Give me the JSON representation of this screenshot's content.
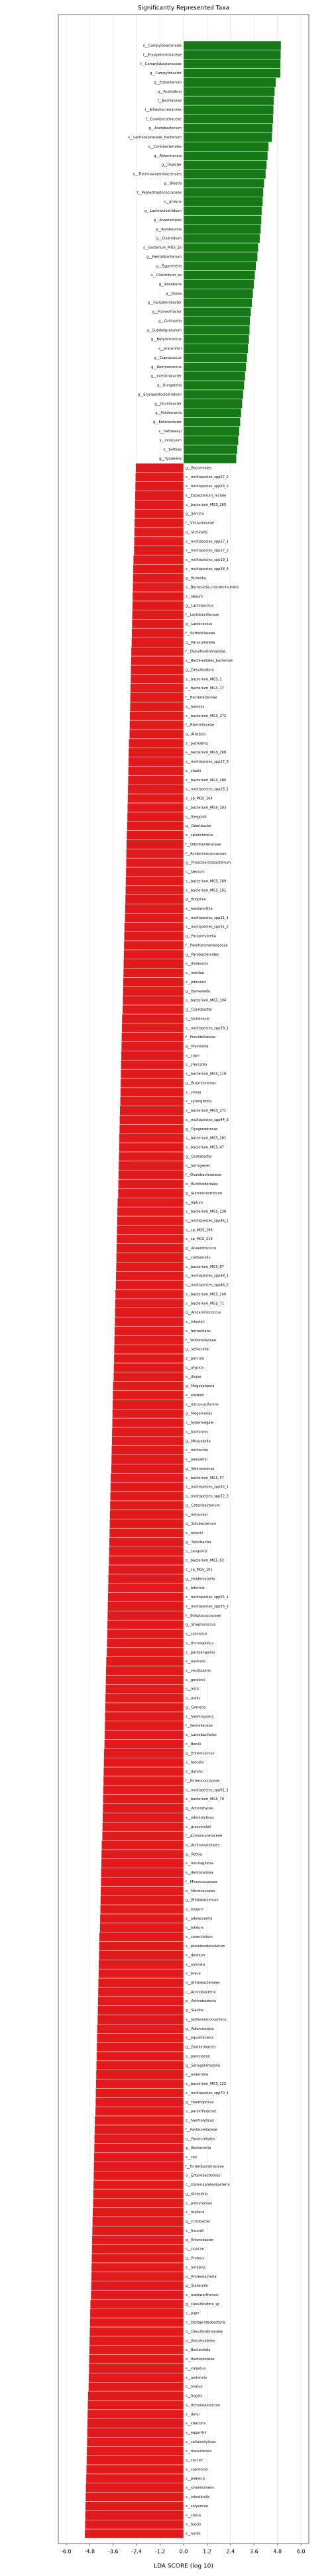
{
  "chart_data": {
    "type": "barh",
    "title": "Significantly Represented Taxa",
    "x_label": "LDA SCORE (log 10)",
    "positive_color": "#157a15",
    "negative_color": "#e31a1c",
    "grid": true,
    "xlim": [
      -6.4,
      6.4
    ],
    "xticks": [
      {
        "value": -6,
        "label": "-6.0"
      },
      -4.8,
      -3.6,
      -2.4,
      -1.2,
      {
        "value": 0,
        "label": "0.0"
      },
      1.2,
      2.4,
      3.6,
      4.8,
      {
        "value": 6,
        "label": "6.0"
      }
    ],
    "categories": [
      "o__Campylobacterales",
      "f__Erysipelotrichaceae",
      "f__Campylobacteraceae",
      "g__Campylobacter",
      "g__Eubacterium",
      "g__Acetivibrio",
      "f__Bacillaceae",
      "f__Bifidobacteriaceae",
      "f__Coriobacteriaceae",
      "g__Acetobacterium",
      "s__Lachnospiraceae_bacterium",
      "o__Coriobacteriales",
      "g__Akkermansia",
      "g__Dialister",
      "o__Thermoanaerobacterales",
      "g__Blautia",
      "f__Peptostreptococcaceae",
      "s__gnavus",
      "g__Lachnoclostridium",
      "g__Anaerostipes",
      "g__Romboutsia",
      "g__Clostridium",
      "s__bacterium_MGS_25",
      "g__Faecalibacterium",
      "g__Eggerthella",
      "s__Clostridium_sp",
      "g__Roseburia",
      "g__Dorea",
      "g__Fusicatenibacter",
      "g__Flavonifractor",
      "g__Collinsella",
      "g__Subdoligranulum",
      "g__Butyricicoccus",
      "s__prausnitzii",
      "g__Coprococcus",
      "g__Ruminococcus",
      "g__Intestinibacter",
      "g__Hungatella",
      "g__Erysipelatoclostridium",
      "g__Oscillibacter",
      "g__Holdemania",
      "g__Enterocloster",
      "s__hathewayi",
      "s__innocuum",
      "s__bolteae",
      "g__Tyzzerella",
      "g__Bacteroides",
      "s__multispecies_spp57_2",
      "s__multispecies_spp53_2",
      "s__Eubacterium_rectale",
      "s__bacterium_MGS_265",
      "g__Sarcina",
      "f__Victivallaceae",
      "g__Victivallis",
      "s__multispecies_spp17_1",
      "s__multispecies_spp17_2",
      "s__multispecies_spp19_1",
      "s__multispecies_spp28_4",
      "g__Bulleidia",
      "s__Barnesiella_intestinihominis",
      "s__obeum",
      "g__Lactobacillus",
      "f__Lactobacillaceae",
      "g__Lactococcus",
      "f__Sutterellaceae",
      "g__Parasutterella",
      "f__Desulfovibrionaceae",
      "s__Bacteroidales_bacterium",
      "g__Desulfovibrio",
      "s__bacterium_MGS_1",
      "s__bacterium_MGS_27",
      "f__Bacteroidaceae",
      "s__hominis",
      "s__bacterium_MGS_272",
      "f__Rikenellaceae",
      "g__Alistipes",
      "s__putredinis",
      "s__bacterium_MGS_268",
      "s__multispecies_spp27_8",
      "s__shahii",
      "s__bacterium_MGS_280",
      "s__multispecies_spp26_1",
      "s__sp_MGS_164",
      "s__bacterium_MGS_283",
      "s__finegoldii",
      "g__Odoribacter",
      "s__splanchnicus",
      "f__Odoribacteraceae",
      "f__Acidaminococcaceae",
      "g__Phascolarctobacterium",
      "s__faecium",
      "s__bacterium_MGS_169",
      "s__bacterium_MGS_291",
      "g__Bilophila",
      "s__wadsworthia",
      "s__multispecies_spp31_1",
      "s__multispecies_spp31_2",
      "g__Paraprevotella",
      "f__Porphyromonadaceae",
      "g__Parabacteroides",
      "s__distasonis",
      "s__merdae",
      "s__johnsonii",
      "g__Barnesiella",
      "s__bacterium_MGS_104",
      "g__Coprobacter",
      "s__fastidiosus",
      "s__multispecies_spp39_1",
      "f__Prevotellaceae",
      "g__Prevotella",
      "s__copri",
      "s__stercorea",
      "s__bacterium_MGS_118",
      "g__Butyricimonas",
      "s__virosa",
      "s__synergistica",
      "s__bacterium_MGS_271",
      "s__multispecies_spp44_3",
      "g__Dysgonomonas",
      "s__bacterium_MGS_281",
      "s__bacterium_MGS_47",
      "g__Oxalobacter",
      "s__formigenes",
      "f__Oxalobacteraceae",
      "o__Burkholderiales",
      "g__Ruminiclostridium",
      "s__leptum",
      "s__bacterium_MGS_138",
      "s__multispecies_spp46_1",
      "s__sp_MGS_196",
      "s__sp_MGS_219",
      "g__Anaerotruncus",
      "s__colihominis",
      "s__bacterium_MGS_87",
      "s__multispecies_spp48_1",
      "s__multispecies_spp48_2",
      "s__bacterium_MGS_146",
      "s__bacterium_MGS_71",
      "g__Acidaminococcus",
      "s__intestini",
      "s__fermentans",
      "f__Veillonellaceae",
      "g__Veillonella",
      "s__parvula",
      "s__atypica",
      "s__dispar",
      "g__Megasphaera",
      "s__elsdenii",
      "s__micronuciformis",
      "g__Megamonas",
      "s__hypermegale",
      "s__funiformis",
      "g__Mitsuokella",
      "s__multacida",
      "s__jalaludinii",
      "g__Selenomonas",
      "s__bacterium_MGS_57",
      "s__multispecies_spp52_1",
      "s__multispecies_spp52_3",
      "g__Catenibacterium",
      "s__mitsuokai",
      "g__Solobacterium",
      "s__moorei",
      "g__Turicibacter",
      "s__sanguinis",
      "s__bacterium_MGS_83",
      "s__sp_MGS_101",
      "g__Holdemanella",
      "s__biformis",
      "s__multispecies_spp55_1",
      "s__multispecies_spp55_2",
      "f__Streptococcaceae",
      "g__Streptococcus",
      "s__salivarius",
      "s__thermophilus",
      "s__parasanguinis",
      "s__australis",
      "s__vestibularis",
      "s__gordonii",
      "s__mitis",
      "s__oralis",
      "g__Gemella",
      "s__haemolysans",
      "f__Gemellaceae",
      "o__Lactobacillales",
      "c__Bacilli",
      "g__Enterococcus",
      "s__faecalis",
      "s__durans",
      "f__Enterococcaceae",
      "s__multispecies_spp61_1",
      "s__bacterium_MGS_79",
      "g__Actinomyces",
      "s__odontolyticus",
      "s__graevenitzii",
      "f__Actinomycetaceae",
      "o__Actinomycetales",
      "g__Rothia",
      "s__mucilaginosa",
      "s__dentocariosa",
      "f__Micrococcaceae",
      "o__Micrococcales",
      "g__Bifidobacterium",
      "s__longum",
      "s__adolescentis",
      "s__bifidum",
      "s__catenulatum",
      "s__pseudocatenulatum",
      "s__dentium",
      "s__animalis",
      "s__breve",
      "o__Bifidobacteriales",
      "c__Actinobacteria",
      "p__Actinobacteria",
      "g__Slackia",
      "s__isoflavoniconvertens",
      "g__Adlercreutzia",
      "s__equolifaciens",
      "g__Gordonibacter",
      "s__pamelaeae",
      "g__Senegalimassilia",
      "s__anaerobia",
      "s__bacterium_MGS_122",
      "s__multispecies_spp70_1",
      "g__Haemophilus",
      "s__parainfluenzae",
      "s__haemolyticus",
      "f__Pasteurellaceae",
      "o__Pasteurellales",
      "g__Escherichia",
      "s__coli",
      "f__Enterobacteriaceae",
      "o__Enterobacterales",
      "c__Gammaproteobacteria",
      "g__Klebsiella",
      "s__pneumoniae",
      "s__oxytoca",
      "g__Citrobacter",
      "s__freundii",
      "g__Enterobacter",
      "s__cloacae",
      "g__Proteus",
      "s__mirabilis",
      "p__Proteobacteria",
      "g__Sutterella",
      "s__wadsworthensis",
      "g__Desulfovibrio_sp",
      "s__piger",
      "c__Deltaproteobacteria",
      "o__Desulfovibrionales",
      "p__Bacteroidetes",
      "c__Bacteroidia",
      "o__Bacteroidales",
      "s__vulgatus",
      "s__uniformis",
      "s__ovatus",
      "s__fragilis",
      "s__thetaiotaomicron",
      "s__dorei",
      "s__stercoris",
      "s__eggerthii",
      "s__cellulosilyticus",
      "s__massiliensis",
      "s__caccae",
      "s__coprocola",
      "s__plebeius",
      "s__xylanisolvens",
      "s__intestinalis",
      "s__salyersiae",
      "s__clarus",
      "s__faecis",
      "s__nordii"
    ],
    "values": [
      4.98,
      4.97,
      4.96,
      4.95,
      4.72,
      4.66,
      4.62,
      4.6,
      4.58,
      4.55,
      4.52,
      4.35,
      4.3,
      4.25,
      4.2,
      4.12,
      4.08,
      4.05,
      4.0,
      3.98,
      3.95,
      3.9,
      3.82,
      3.78,
      3.7,
      3.65,
      3.6,
      3.55,
      3.5,
      3.45,
      3.4,
      3.38,
      3.35,
      3.3,
      3.25,
      3.2,
      3.15,
      3.1,
      3.05,
      3.0,
      2.95,
      2.9,
      2.85,
      2.8,
      2.75,
      2.7,
      -2.45,
      -2.46,
      -2.47,
      -2.48,
      -2.49,
      -2.5,
      -2.51,
      -2.52,
      -2.53,
      -2.54,
      -2.57,
      -2.58,
      -2.59,
      -2.6,
      -2.61,
      -2.62,
      -2.63,
      -2.64,
      -2.65,
      -2.66,
      -2.68,
      -2.69,
      -2.7,
      -2.71,
      -2.72,
      -2.73,
      -2.74,
      -2.75,
      -2.76,
      -2.77,
      -2.8,
      -2.81,
      -2.82,
      -2.83,
      -2.84,
      -2.85,
      -2.86,
      -2.87,
      -2.88,
      -2.89,
      -2.91,
      -2.92,
      -2.93,
      -2.94,
      -2.95,
      -2.96,
      -2.97,
      -2.98,
      -2.99,
      -3.0,
      -3.03,
      -3.04,
      -3.05,
      -3.06,
      -3.07,
      -3.08,
      -3.09,
      -3.1,
      -3.11,
      -3.12,
      -3.15,
      -3.16,
      -3.17,
      -3.18,
      -3.19,
      -3.2,
      -3.21,
      -3.22,
      -3.23,
      -3.24,
      -3.26,
      -3.27,
      -3.28,
      -3.29,
      -3.3,
      -3.31,
      -3.32,
      -3.33,
      -3.34,
      -3.35,
      -3.38,
      -3.39,
      -3.4,
      -3.41,
      -3.42,
      -3.43,
      -3.44,
      -3.45,
      -3.46,
      -3.47,
      -3.49,
      -3.5,
      -3.51,
      -3.52,
      -3.53,
      -3.54,
      -3.55,
      -3.56,
      -3.57,
      -3.58,
      -3.61,
      -3.62,
      -3.63,
      -3.64,
      -3.65,
      -3.66,
      -3.67,
      -3.68,
      -3.69,
      -3.7,
      -3.73,
      -3.74,
      -3.75,
      -3.76,
      -3.77,
      -3.78,
      -3.79,
      -3.8,
      -3.81,
      -3.82,
      -3.84,
      -3.85,
      -3.86,
      -3.87,
      -3.88,
      -3.89,
      -3.9,
      -3.91,
      -3.92,
      -3.93,
      -3.96,
      -3.97,
      -3.98,
      -3.99,
      -4.0,
      -4.01,
      -4.02,
      -4.03,
      -4.04,
      -4.05,
      -4.07,
      -4.08,
      -4.09,
      -4.1,
      -4.11,
      -4.12,
      -4.13,
      -4.14,
      -4.15,
      -4.16,
      -4.19,
      -4.2,
      -4.21,
      -4.22,
      -4.23,
      -4.24,
      -4.25,
      -4.26,
      -4.27,
      -4.28,
      -4.31,
      -4.32,
      -4.33,
      -4.34,
      -4.35,
      -4.36,
      -4.37,
      -4.38,
      -4.39,
      -4.4,
      -4.42,
      -4.43,
      -4.44,
      -4.45,
      -4.46,
      -4.47,
      -4.48,
      -4.49,
      -4.5,
      -4.51,
      -4.54,
      -4.55,
      -4.56,
      -4.57,
      -4.58,
      -4.59,
      -4.6,
      -4.61,
      -4.62,
      -4.63,
      -4.65,
      -4.66,
      -4.67,
      -4.68,
      -4.69,
      -4.7,
      -4.71,
      -4.72,
      -4.73,
      -4.74,
      -4.77,
      -4.78,
      -4.79,
      -4.8,
      -4.81,
      -4.82,
      -4.83,
      -4.84,
      -4.85,
      -4.86,
      -4.89,
      -4.9,
      -4.91,
      -4.92,
      -4.93,
      -4.94,
      -4.95,
      -4.96,
      -4.97,
      -4.98,
      -5.0,
      -5.01,
      -5.02,
      -5.03,
      -5.04,
      -5.05
    ]
  }
}
